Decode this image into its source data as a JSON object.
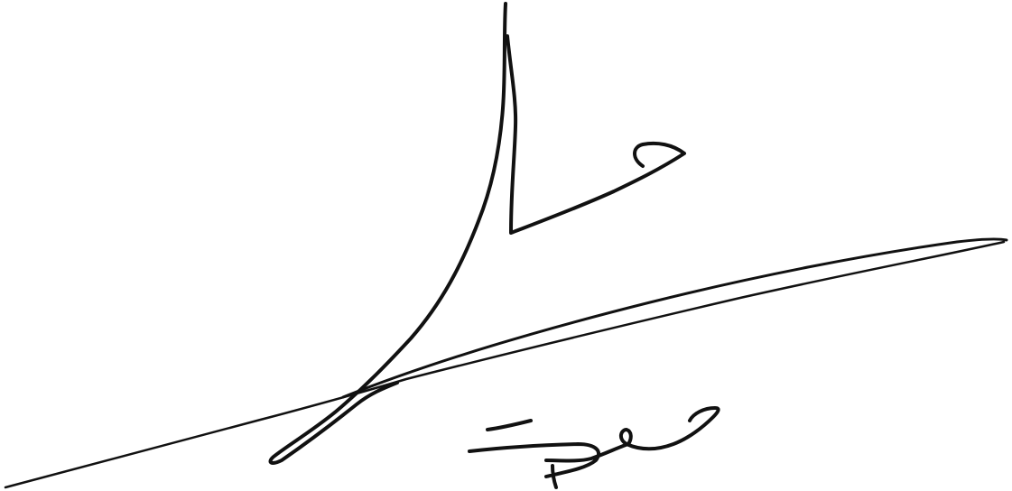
{
  "image": {
    "kind": "handwritten-signature",
    "background_color": "#ffffff",
    "ink_color": "#111111"
  }
}
